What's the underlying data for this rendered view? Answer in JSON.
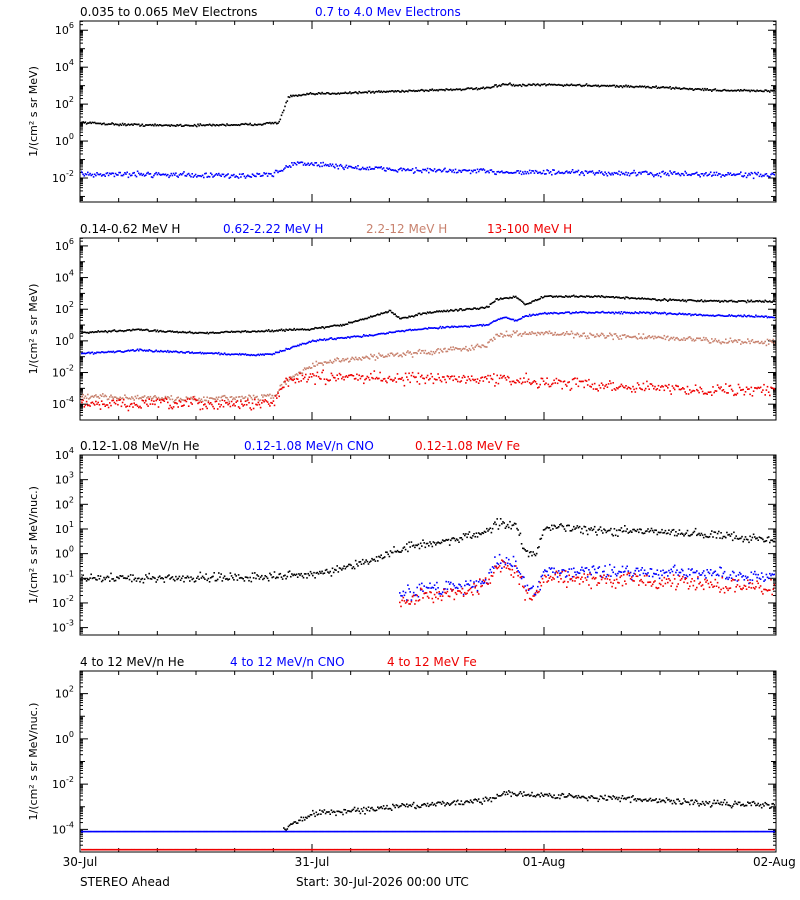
{
  "footer": {
    "spacecraft": "STEREO Ahead",
    "start": "Start: 30-Jul-2026 00:00 UTC"
  },
  "time_axis": {
    "tick_labels": [
      "30-Jul",
      "31-Jul",
      "01-Aug",
      "02-Aug"
    ],
    "tick_hours": [
      0,
      24,
      48,
      72
    ],
    "minor_every_hours": 4,
    "range_hours": [
      0,
      72
    ]
  },
  "chart_data": [
    {
      "type": "scatter",
      "ylabel": "1/(cm² s sr MeV)",
      "yscale": "log",
      "ylim_exp": [
        -3.3,
        6.5
      ],
      "ytick_exps": [
        -2,
        0,
        2,
        4,
        6
      ],
      "legend": [
        {
          "name": "0.035 to 0.065 MeV Electrons",
          "color": "#000000"
        },
        {
          "name": "0.7 to 4.0 Mev Electrons",
          "color": "#0000ff"
        }
      ],
      "series": [
        {
          "name": "0.035 to 0.065 MeV Electrons",
          "color": "#000000",
          "scatter_dex": 0.05,
          "x_hours": [
            0,
            4,
            8,
            12,
            18,
            20.5,
            21.5,
            24,
            30,
            36,
            42,
            44,
            45,
            48,
            54,
            60,
            66,
            72
          ],
          "log10_values": [
            1.0,
            0.9,
            0.85,
            0.85,
            0.9,
            1.0,
            2.4,
            2.55,
            2.65,
            2.75,
            2.85,
            3.1,
            3.0,
            3.05,
            3.0,
            2.9,
            2.75,
            2.7
          ]
        },
        {
          "name": "0.7 to 4.0 Mev Electrons",
          "color": "#0000ff",
          "scatter_dex": 0.12,
          "x_hours": [
            0,
            8,
            16,
            20,
            22,
            24,
            30,
            36,
            42,
            48,
            56,
            64,
            72
          ],
          "log10_values": [
            -1.8,
            -1.8,
            -1.9,
            -1.8,
            -1.2,
            -1.25,
            -1.5,
            -1.6,
            -1.65,
            -1.7,
            -1.75,
            -1.8,
            -1.85
          ]
        }
      ]
    },
    {
      "type": "scatter",
      "ylabel": "1/(cm² s sr MeV)",
      "yscale": "log",
      "ylim_exp": [
        -5.0,
        6.5
      ],
      "ytick_exps": [
        -4,
        -2,
        0,
        2,
        4,
        6
      ],
      "legend": [
        {
          "name": "0.14-0.62 MeV H",
          "color": "#000000"
        },
        {
          "name": "0.62-2.22 MeV H",
          "color": "#0000ff"
        },
        {
          "name": "2.2-12 MeV H",
          "color": "#c8826e"
        },
        {
          "name": "13-100 MeV H",
          "color": "#ee0000"
        }
      ],
      "series": [
        {
          "name": "0.14-0.62 MeV H",
          "color": "#000000",
          "scatter_dex": 0.05,
          "x_hours": [
            0,
            6,
            12,
            18,
            24,
            27,
            30,
            32,
            33,
            36,
            40,
            42,
            43,
            45,
            46,
            48,
            54,
            60,
            66,
            72
          ],
          "log10_values": [
            0.5,
            0.7,
            0.5,
            0.6,
            0.75,
            1.0,
            1.5,
            1.9,
            1.4,
            1.8,
            2.0,
            2.1,
            2.6,
            2.8,
            2.3,
            2.8,
            2.8,
            2.6,
            2.5,
            2.5
          ]
        },
        {
          "name": "0.62-2.22 MeV H",
          "color": "#0000ff",
          "scatter_dex": 0.05,
          "x_hours": [
            0,
            6,
            12,
            18,
            20,
            24,
            27,
            30,
            33,
            36,
            42,
            43,
            44,
            45,
            46,
            48,
            54,
            60,
            66,
            72
          ],
          "log10_values": [
            -0.8,
            -0.6,
            -0.75,
            -0.9,
            -0.8,
            0.0,
            0.2,
            0.35,
            0.6,
            0.8,
            1.0,
            1.3,
            1.5,
            1.25,
            1.55,
            1.75,
            1.8,
            1.75,
            1.6,
            1.5
          ]
        },
        {
          "name": "2.2-12 MeV H",
          "color": "#c8826e",
          "scatter_dex": 0.15,
          "x_hours": [
            0,
            6,
            12,
            18,
            20,
            21,
            24,
            30,
            36,
            42,
            43,
            45,
            48,
            54,
            60,
            66,
            72
          ],
          "log10_values": [
            -3.5,
            -3.6,
            -3.7,
            -3.6,
            -3.5,
            -2.7,
            -1.5,
            -1.0,
            -0.7,
            -0.3,
            0.3,
            0.5,
            0.5,
            0.3,
            0.2,
            0.0,
            -0.1
          ]
        },
        {
          "name": "13-100 MeV H",
          "color": "#ee0000",
          "scatter_dex": 0.3,
          "x_hours": [
            0,
            6,
            12,
            18,
            20,
            21,
            24,
            30,
            36,
            42,
            48,
            54,
            60,
            66,
            72
          ],
          "log10_values": [
            -4.0,
            -4.0,
            -4.0,
            -4.0,
            -3.9,
            -2.6,
            -2.3,
            -2.3,
            -2.4,
            -2.4,
            -2.6,
            -2.8,
            -3.0,
            -3.1,
            -3.1
          ]
        }
      ]
    },
    {
      "type": "scatter",
      "ylabel": "1/(cm² s sr MeV/nuc.)",
      "yscale": "log",
      "ylim_exp": [
        -3.3,
        4.0
      ],
      "ytick_exps": [
        -3,
        -2,
        -1,
        0,
        1,
        2,
        3,
        4
      ],
      "legend": [
        {
          "name": "0.12-1.08 MeV/n He",
          "color": "#000000"
        },
        {
          "name": "0.12-1.08 MeV/n CNO",
          "color": "#0000ff"
        },
        {
          "name": "0.12-1.08 MeV Fe",
          "color": "#ee0000"
        }
      ],
      "series": [
        {
          "name": "0.12-1.08 MeV/n He",
          "color": "#000000",
          "scatter_dex": 0.15,
          "x_hours": [
            0,
            8,
            16,
            22,
            26,
            30,
            34,
            38,
            42,
            43,
            45,
            46,
            47,
            48,
            52,
            58,
            64,
            72
          ],
          "log10_values": [
            -1.0,
            -1.0,
            -0.95,
            -0.9,
            -0.75,
            -0.3,
            0.3,
            0.5,
            0.9,
            1.2,
            1.2,
            0.1,
            -0.1,
            1.1,
            0.95,
            0.9,
            0.8,
            0.55
          ]
        },
        {
          "name": "0.12-1.08 MeV/n CNO",
          "color": "#0000ff",
          "scatter_dex": 0.25,
          "start_hours": 33,
          "x_hours": [
            33,
            36,
            40,
            42,
            43,
            45,
            46,
            47,
            48,
            52,
            58,
            64,
            72
          ],
          "log10_values": [
            -1.7,
            -1.4,
            -1.3,
            -1.1,
            -0.3,
            -0.4,
            -1.3,
            -1.6,
            -0.7,
            -0.7,
            -0.75,
            -0.8,
            -1.0
          ]
        },
        {
          "name": "0.12-1.08 MeV Fe",
          "color": "#ee0000",
          "scatter_dex": 0.25,
          "start_hours": 33,
          "x_hours": [
            33,
            36,
            40,
            42,
            43,
            45,
            46,
            47,
            48,
            52,
            58,
            64,
            72
          ],
          "log10_values": [
            -1.9,
            -1.7,
            -1.5,
            -1.3,
            -0.6,
            -0.7,
            -1.6,
            -1.8,
            -1.0,
            -1.05,
            -1.1,
            -1.25,
            -1.4
          ]
        }
      ]
    },
    {
      "type": "scatter",
      "ylabel": "1/(cm² s sr MeV/nuc.)",
      "yscale": "log",
      "ylim_exp": [
        -5.0,
        3.0
      ],
      "ytick_exps": [
        -4,
        -2,
        0,
        2
      ],
      "legend": [
        {
          "name": "4 to 12 MeV/n He",
          "color": "#000000"
        },
        {
          "name": "4 to 12 MeV/n CNO",
          "color": "#0000ff"
        },
        {
          "name": "4 to 12 MeV Fe",
          "color": "#ee0000"
        }
      ],
      "series": [
        {
          "name": "4 to 12 MeV/n He",
          "color": "#000000",
          "scatter_dex": 0.12,
          "start_hours": 21,
          "x_hours": [
            21,
            24,
            30,
            36,
            42,
            44,
            48,
            54,
            60,
            66,
            72
          ],
          "log10_values": [
            -4.0,
            -3.3,
            -3.1,
            -2.9,
            -2.7,
            -2.4,
            -2.5,
            -2.6,
            -2.75,
            -2.85,
            -2.95
          ]
        },
        {
          "name": "4 to 12 MeV/n CNO",
          "color": "#0000ff",
          "scatter_dex": 0.0,
          "x_hours": [
            0,
            72
          ],
          "log10_values": [
            -4.1,
            -4.1
          ]
        },
        {
          "name": "4 to 12 MeV Fe",
          "color": "#ee0000",
          "scatter_dex": 0.0,
          "x_hours": [
            0,
            72
          ],
          "log10_values": [
            -4.9,
            -4.9
          ]
        }
      ]
    }
  ]
}
